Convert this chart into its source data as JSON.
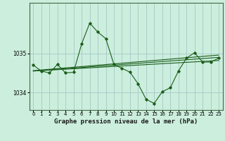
{
  "title": "Graphe pression niveau de la mer (hPa)",
  "background_color": "#cceedd",
  "grid_color": "#aacccc",
  "line_color": "#1a5e1a",
  "marker_color": "#1a5e1a",
  "x_ticks": [
    0,
    1,
    2,
    3,
    4,
    5,
    6,
    7,
    8,
    9,
    10,
    11,
    12,
    13,
    14,
    15,
    16,
    17,
    18,
    19,
    20,
    21,
    22,
    23
  ],
  "ylim": [
    1033.55,
    1036.3
  ],
  "yticks": [
    1034,
    1035
  ],
  "main_y": [
    1034.7,
    1034.55,
    1034.5,
    1034.72,
    1034.5,
    1034.52,
    1035.25,
    1035.78,
    1035.55,
    1035.38,
    1034.72,
    1034.62,
    1034.52,
    1034.22,
    1033.82,
    1033.72,
    1034.02,
    1034.12,
    1034.55,
    1034.88,
    1035.02,
    1034.78,
    1034.78,
    1034.88
  ],
  "trend_lines": [
    {
      "x0": 0,
      "x1": 23,
      "y0": 1034.55,
      "y1": 1034.82
    },
    {
      "x0": 0,
      "x1": 23,
      "y0": 1034.55,
      "y1": 1034.9
    },
    {
      "x0": 0,
      "x1": 23,
      "y0": 1034.56,
      "y1": 1034.96
    }
  ],
  "title_fontsize": 6.5,
  "tick_fontsize": 5.0
}
